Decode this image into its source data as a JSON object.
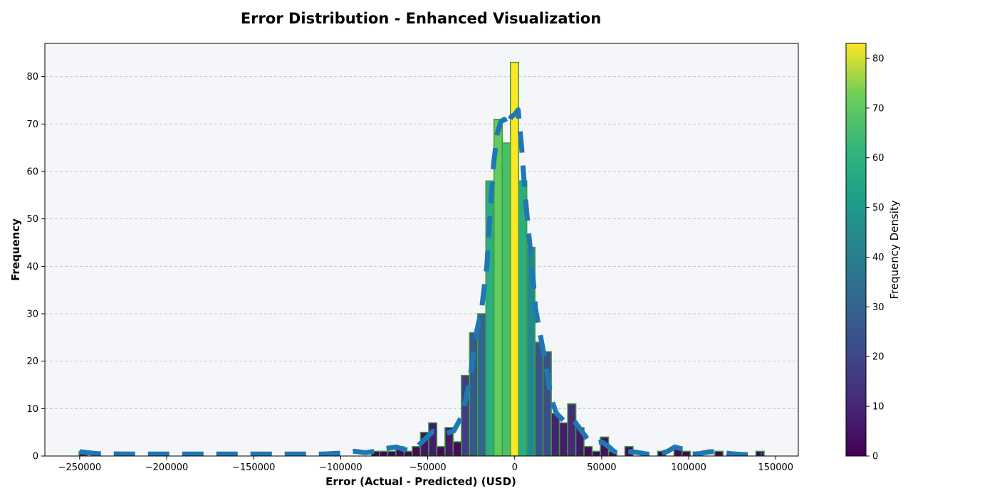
{
  "chart_data": {
    "type": "bar",
    "title": "Error Distribution - Enhanced Visualization",
    "xlabel": "Error (Actual - Predicted) (USD)",
    "ylabel": "Frequency",
    "xlim": [
      -270000,
      163000
    ],
    "ylim": [
      0,
      87
    ],
    "x_ticks": [
      -250000,
      -200000,
      -150000,
      -100000,
      -50000,
      0,
      50000,
      100000,
      150000
    ],
    "x_tick_labels": [
      "−250000",
      "−200000",
      "−150000",
      "−100000",
      "−50000",
      "0",
      "50000",
      "100000",
      "150000"
    ],
    "y_ticks": [
      0,
      10,
      20,
      30,
      40,
      50,
      60,
      70,
      80
    ],
    "y_tick_labels": [
      "0",
      "10",
      "20",
      "30",
      "40",
      "50",
      "60",
      "70",
      "80"
    ],
    "grid": "y-dashed",
    "bin_width": 4700,
    "bins": [
      {
        "x": -248000,
        "count": 1
      },
      {
        "x": -80000,
        "count": 1
      },
      {
        "x": -75300,
        "count": 1
      },
      {
        "x": -70600,
        "count": 1
      },
      {
        "x": -65900,
        "count": 2
      },
      {
        "x": -61200,
        "count": 1
      },
      {
        "x": -56500,
        "count": 2
      },
      {
        "x": -51800,
        "count": 5
      },
      {
        "x": -47100,
        "count": 7
      },
      {
        "x": -42400,
        "count": 2
      },
      {
        "x": -37700,
        "count": 6
      },
      {
        "x": -33000,
        "count": 3
      },
      {
        "x": -28300,
        "count": 17
      },
      {
        "x": -23600,
        "count": 26
      },
      {
        "x": -18900,
        "count": 30
      },
      {
        "x": -14200,
        "count": 58
      },
      {
        "x": -9500,
        "count": 71
      },
      {
        "x": -4800,
        "count": 66
      },
      {
        "x": -100,
        "count": 83
      },
      {
        "x": 4600,
        "count": 58
      },
      {
        "x": 9300,
        "count": 44
      },
      {
        "x": 14000,
        "count": 24
      },
      {
        "x": 18700,
        "count": 22
      },
      {
        "x": 23400,
        "count": 9
      },
      {
        "x": 28100,
        "count": 7
      },
      {
        "x": 32800,
        "count": 11
      },
      {
        "x": 37500,
        "count": 6
      },
      {
        "x": 42200,
        "count": 2
      },
      {
        "x": 46900,
        "count": 1
      },
      {
        "x": 51600,
        "count": 4
      },
      {
        "x": 56300,
        "count": 1
      },
      {
        "x": 65700,
        "count": 2
      },
      {
        "x": 84500,
        "count": 1
      },
      {
        "x": 93900,
        "count": 2
      },
      {
        "x": 98600,
        "count": 1
      },
      {
        "x": 117400,
        "count": 1
      },
      {
        "x": 141000,
        "count": 1
      }
    ],
    "density_curve": {
      "style": "dashed",
      "color": "#1f77b4",
      "points": [
        [
          -250000,
          0.9
        ],
        [
          -240000,
          0.5
        ],
        [
          -220000,
          0.4
        ],
        [
          -180000,
          0.4
        ],
        [
          -140000,
          0.4
        ],
        [
          -110000,
          0.4
        ],
        [
          -100000,
          0.6
        ],
        [
          -92000,
          1.0
        ],
        [
          -86000,
          0.7
        ],
        [
          -80000,
          1.0
        ],
        [
          -74000,
          1.6
        ],
        [
          -68000,
          1.9
        ],
        [
          -64000,
          1.4
        ],
        [
          -60000,
          1.2
        ],
        [
          -56000,
          2.0
        ],
        [
          -52000,
          3.4
        ],
        [
          -47000,
          5.2
        ],
        [
          -43000,
          5.0
        ],
        [
          -39000,
          4.8
        ],
        [
          -35000,
          5.3
        ],
        [
          -31000,
          8.0
        ],
        [
          -28000,
          12.0
        ],
        [
          -25000,
          18.0
        ],
        [
          -22000,
          26.0
        ],
        [
          -19000,
          31.0
        ],
        [
          -16000,
          40.0
        ],
        [
          -14000,
          52.0
        ],
        [
          -12000,
          62.0
        ],
        [
          -10000,
          68.0
        ],
        [
          -8000,
          70.5
        ],
        [
          -6000,
          71.0
        ],
        [
          -4000,
          69.5
        ],
        [
          -2000,
          71.5
        ],
        [
          0,
          72.0
        ],
        [
          2000,
          73.0
        ],
        [
          4000,
          65.0
        ],
        [
          6000,
          55.0
        ],
        [
          8000,
          47.0
        ],
        [
          10000,
          40.0
        ],
        [
          12000,
          31.0
        ],
        [
          15000,
          25.0
        ],
        [
          18000,
          19.0
        ],
        [
          21000,
          12.0
        ],
        [
          24000,
          9.0
        ],
        [
          28000,
          7.5
        ],
        [
          31000,
          8.0
        ],
        [
          34000,
          7.5
        ],
        [
          38000,
          5.5
        ],
        [
          42000,
          3.5
        ],
        [
          46000,
          2.8
        ],
        [
          50000,
          3.0
        ],
        [
          54000,
          2.0
        ],
        [
          57000,
          1.0
        ],
        [
          60000,
          0.4
        ],
        [
          64000,
          1.0
        ],
        [
          70000,
          0.8
        ],
        [
          76000,
          0.4
        ],
        [
          82000,
          0.3
        ],
        [
          88000,
          1.0
        ],
        [
          92000,
          1.9
        ],
        [
          96000,
          1.5
        ],
        [
          100000,
          0.4
        ],
        [
          106000,
          0.5
        ],
        [
          112000,
          0.9
        ],
        [
          118000,
          0.9
        ],
        [
          124000,
          0.5
        ],
        [
          132000,
          0.3
        ],
        [
          142000,
          0.3
        ]
      ]
    },
    "colorbar": {
      "label": "Frequency Density",
      "min": 0,
      "max": 83,
      "ticks": [
        0,
        10,
        20,
        30,
        40,
        50,
        60,
        70,
        80
      ],
      "tick_labels": [
        "0",
        "10",
        "20",
        "30",
        "40",
        "50",
        "60",
        "70",
        "80"
      ],
      "colormap": "viridis"
    },
    "colors": {
      "plot_background": "#f4f6fa",
      "bar_edge": "#3d9e3d",
      "grid": "#c4c6cb"
    }
  }
}
